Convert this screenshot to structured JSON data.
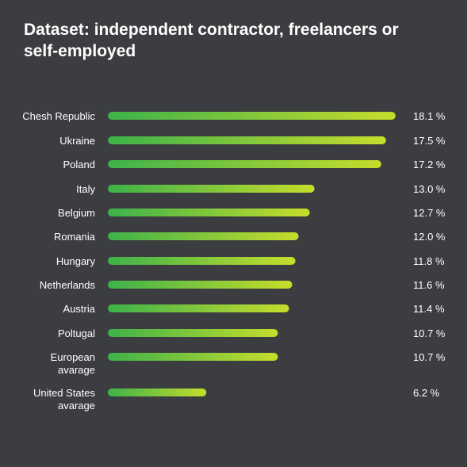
{
  "title": "Dataset: independent contractor, freelancers or self-employed",
  "colors": {
    "background": "#3c3d40",
    "text": "#ffffff",
    "bar_start": "#3db24a",
    "bar_end": "#c6dd2c"
  },
  "chart_data": {
    "type": "bar",
    "orientation": "horizontal",
    "title": "Dataset: independent contractor, freelancers or self-employed",
    "unit": "%",
    "categories": [
      [
        "Chesh Republic"
      ],
      [
        "Ukraine"
      ],
      [
        "Poland"
      ],
      [
        "Italy"
      ],
      [
        "Belgium"
      ],
      [
        "Romania"
      ],
      [
        "Hungary"
      ],
      [
        "Netherlands"
      ],
      [
        "Austria"
      ],
      [
        "Poltugal"
      ],
      [
        "European",
        "avarage"
      ],
      [
        "United States",
        "avarage"
      ]
    ],
    "values": [
      18.1,
      17.5,
      17.2,
      13.0,
      12.7,
      12.0,
      11.8,
      11.6,
      11.4,
      10.7,
      10.7,
      6.2
    ],
    "value_labels": [
      "18.1 %",
      "17.5 %",
      "17.2 %",
      "13.0 %",
      "12.7 %",
      "12.0 %",
      "11.8 %",
      "11.6 %",
      "11.4 %",
      "10.7 %",
      "10.7 %",
      "6.2 %"
    ],
    "grid": false,
    "legend": "none"
  }
}
